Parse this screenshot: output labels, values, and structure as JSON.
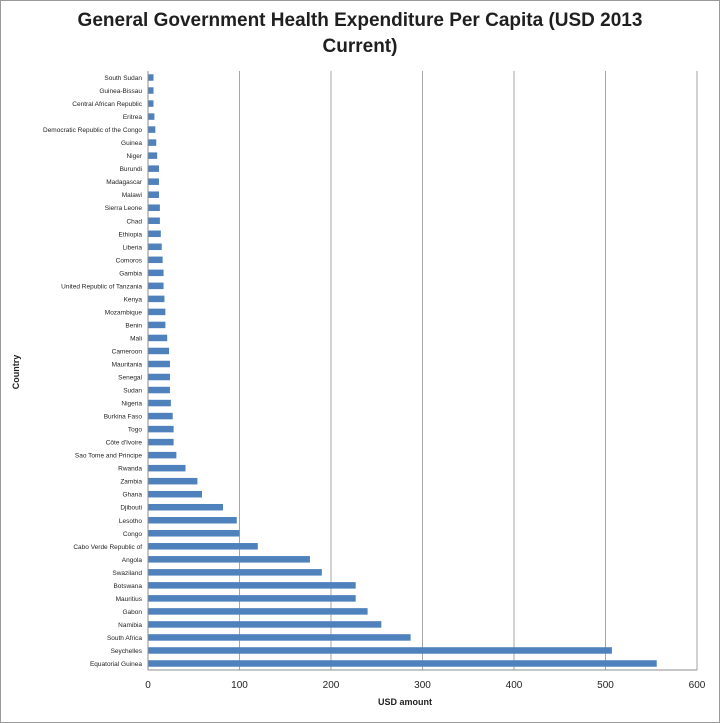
{
  "chart_data": {
    "type": "bar",
    "orientation": "horizontal",
    "title": "General Government Health Expenditure Per Capita (USD 2013 Current)",
    "xlabel": "USD amount",
    "ylabel": "Country",
    "xlim": [
      0,
      600
    ],
    "xticks": [
      "0",
      "100",
      "200",
      "300",
      "400",
      "500",
      "600"
    ],
    "grid": "vertical",
    "bar_color": "#4f81bd",
    "categories": [
      "South Sudan",
      "Guinea-Bissau",
      "Central African Republic",
      "Eritrea",
      "Democratic Republic of the Congo",
      "Guinea",
      "Niger",
      "Burundi",
      "Madagascar",
      "Malawi",
      "Sierra Leone",
      "Chad",
      "Ethiopia",
      "Liberia",
      "Comoros",
      "Gambia",
      "United Republic of Tanzania",
      "Kenya",
      "Mozambique",
      "Benin",
      "Mali",
      "Cameroon",
      "Mauritania",
      "Senegal",
      "Sudan",
      "Nigeria",
      "Burkina Faso",
      "Togo",
      "Côte d'Ivoire",
      "Sao Tome and Principe",
      "Rwanda",
      "Zambia",
      "Ghana",
      "Djibouti",
      "Lesotho",
      "Congo",
      "Cabo Verde Republic of",
      "Angola",
      "Swaziland",
      "Botswana",
      "Mauritius",
      "Gabon",
      "Namibia",
      "South Africa",
      "Seychelles",
      "Equatorial Guinea"
    ],
    "values": [
      6,
      6,
      6,
      7,
      8,
      9,
      10,
      12,
      12,
      12,
      13,
      13,
      14,
      15,
      16,
      17,
      17,
      18,
      19,
      19,
      21,
      23,
      24,
      24,
      24,
      25,
      27,
      28,
      28,
      31,
      41,
      54,
      59,
      82,
      97,
      100,
      120,
      177,
      190,
      227,
      227,
      240,
      255,
      287,
      507,
      556
    ]
  }
}
